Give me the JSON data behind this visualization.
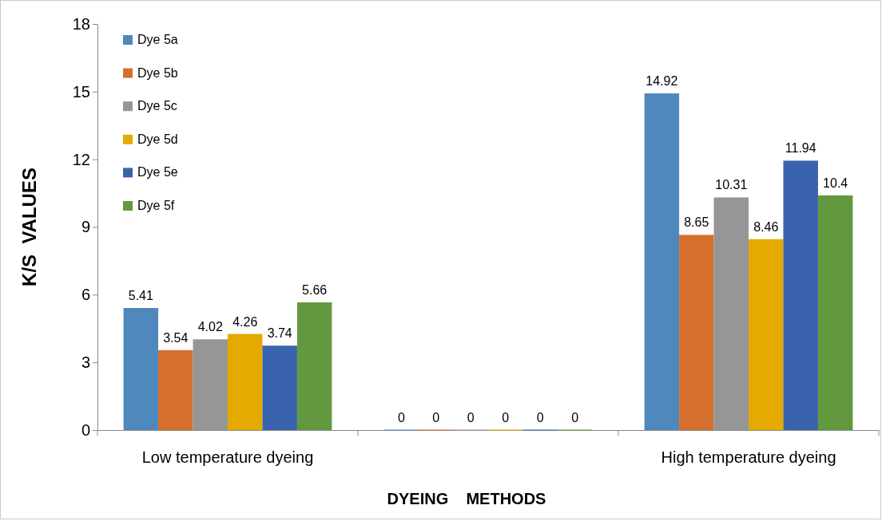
{
  "chart_data": {
    "type": "bar",
    "xlabel": "DYEING    METHODS",
    "ylabel": "K/S  VALUES",
    "categories": [
      "Low temperature dyeing",
      null,
      "High temperature dyeing"
    ],
    "series": [
      {
        "name": "Dye 5a",
        "color": "#4f88bd",
        "values": [
          5.41,
          0,
          14.92
        ]
      },
      {
        "name": "Dye 5b",
        "color": "#d46f2e",
        "values": [
          3.54,
          0,
          8.65
        ]
      },
      {
        "name": "Dye 5c",
        "color": "#969696",
        "values": [
          4.02,
          0,
          10.31
        ]
      },
      {
        "name": "Dye 5d",
        "color": "#e5aa00",
        "values": [
          4.26,
          0,
          8.46
        ]
      },
      {
        "name": "Dye 5e",
        "color": "#3a63ad",
        "values": [
          3.74,
          0,
          11.94
        ]
      },
      {
        "name": "Dye 5f",
        "color": "#62993f",
        "values": [
          5.66,
          0,
          10.4
        ]
      }
    ],
    "ylim": [
      0,
      18
    ],
    "yticks": [
      0,
      3,
      6,
      9,
      12,
      15,
      18
    ],
    "grid": false,
    "legend": "top left",
    "data_labels": true
  }
}
